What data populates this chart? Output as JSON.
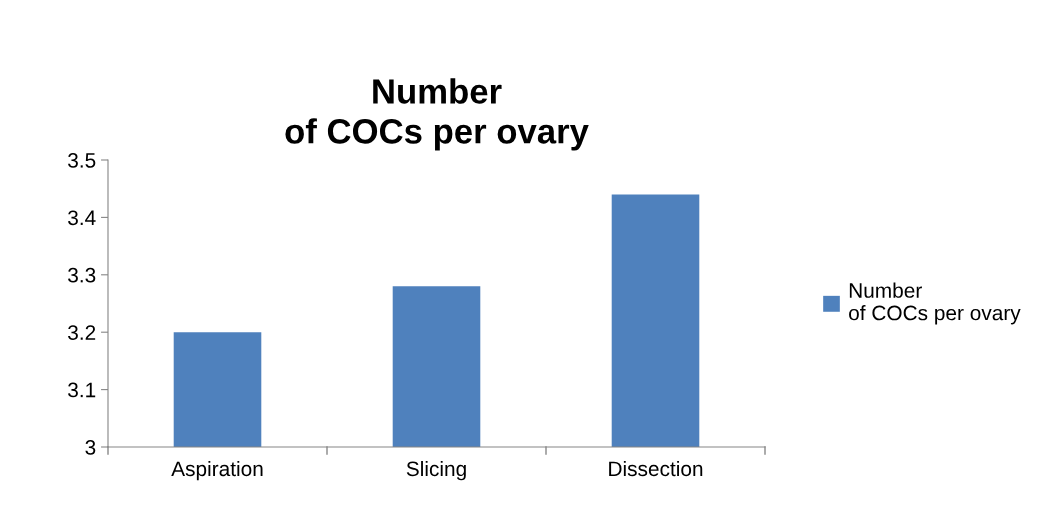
{
  "chart_data": {
    "type": "bar",
    "title": "Number\nof COCs per ovary",
    "categories": [
      "Aspiration",
      "Slicing",
      "Dissection"
    ],
    "series": [
      {
        "name": "Number\nof COCs per ovary",
        "color": "#4f81bd",
        "values": [
          3.2,
          3.28,
          3.44
        ]
      }
    ],
    "ylim": [
      3,
      3.5
    ],
    "yticks": [
      3,
      3.1,
      3.2,
      3.3,
      3.4,
      3.5
    ],
    "grid": false,
    "legend": "right"
  }
}
